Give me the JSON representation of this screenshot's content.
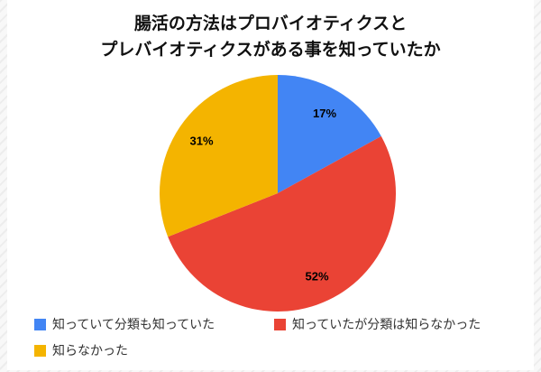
{
  "title": {
    "line1": "腸活の方法はプロバイオティクスと",
    "line2": "プレバイオティクスがある事を知っていたか"
  },
  "chart_data": {
    "type": "pie",
    "title": "腸活の方法はプロバイオティクスとプレバイオティクスがある事を知っていたか",
    "start_angle_deg": 0,
    "direction": "clockwise",
    "legend_position": "bottom",
    "slices": [
      {
        "label": "知っていて分類も知っていた",
        "value": 17,
        "pct_label": "17%",
        "color": "#4285F4"
      },
      {
        "label": "知っていたが分類は知らなかった",
        "value": 52,
        "pct_label": "52%",
        "color": "#EA4335"
      },
      {
        "label": "知らなかった",
        "value": 31,
        "pct_label": "31%",
        "color": "#F4B400"
      }
    ]
  },
  "legend": {
    "items": [
      {
        "label": "知っていて分類も知っていた",
        "color": "#4285F4"
      },
      {
        "label": "知っていたが分類は知らなかった",
        "color": "#EA4335"
      },
      {
        "label": "知らなかった",
        "color": "#F4B400"
      }
    ]
  }
}
